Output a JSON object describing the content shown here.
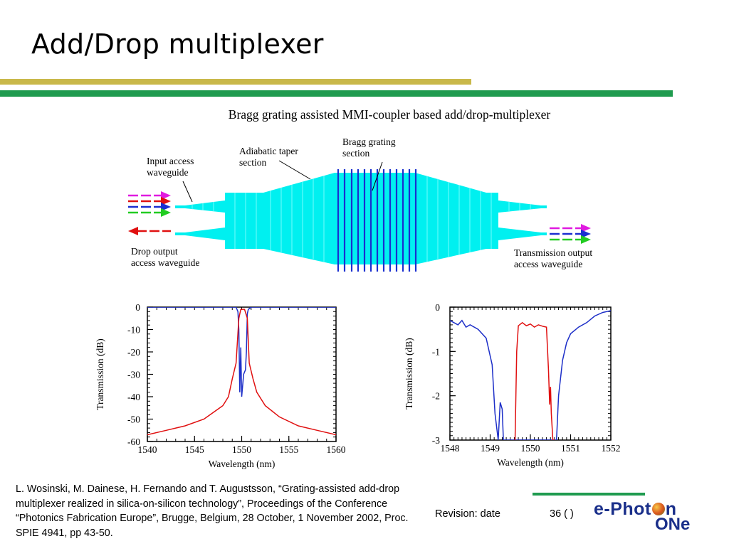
{
  "slide": {
    "title": "Add/Drop multiplexer",
    "diagram_title": "Bragg grating assisted MMI-coupler based add/drop-multiplexer",
    "labels": {
      "input_l1": "Input access",
      "input_l2": "waveguide",
      "taper_l1": "Adiabatic taper",
      "taper_l2": "section",
      "bragg_l1": "Bragg grating",
      "bragg_l2": "section",
      "drop_l1": "Drop output",
      "drop_l2": "access waveguide",
      "trans_l1": "Transmission output",
      "trans_l2": "access waveguide"
    },
    "citation": "L. Wosinski, M. Dainese, H. Fernando and T. Augustsson, “Grating-assisted add-drop multiplexer realized in silica-on-silicon technology”, Proceedings of the Conference “Photonics Fabrication Europe”, Brugge, Belgium, 28 October, 1 November 2002, Proc. SPIE 4941, pp 43-50.",
    "revision": "Revision: date",
    "page": "36 (   )",
    "logo_top": "e-Phot",
    "logo_top_end": "n",
    "logo_bottom": "ONe"
  },
  "colors": {
    "waveguide": "#00f0f0",
    "grating": "#1a2fd0",
    "series_blue": "#1d2fc8",
    "series_red": "#e01010",
    "green_bar": "#1f9b4f",
    "gold_bar": "#c9b84a",
    "logo_blue": "#1a2f8a"
  },
  "chart_data": [
    {
      "type": "line",
      "xlabel": "Wavelength (nm)",
      "ylabel": "Transmission (dB)",
      "xlim": [
        1540,
        1560
      ],
      "ylim": [
        -60,
        0
      ],
      "xticks": [
        1540,
        1545,
        1550,
        1555,
        1560
      ],
      "yticks": [
        0,
        -10,
        -20,
        -30,
        -40,
        -50,
        -60
      ],
      "series": [
        {
          "color": "blue",
          "x": [
            1540,
            1549.4,
            1549.6,
            1549.7,
            1549.8,
            1549.9,
            1550.0,
            1550.2,
            1550.4,
            1550.5,
            1550.6,
            1550.7,
            1551.0,
            1560
          ],
          "y": [
            0,
            0,
            -2,
            -10,
            -38,
            -18,
            -40,
            -30,
            -28,
            -20,
            -3,
            -1,
            0,
            0
          ]
        },
        {
          "color": "red",
          "x": [
            1540,
            1542,
            1544,
            1546,
            1547,
            1548,
            1548.6,
            1549.0,
            1549.4,
            1549.7,
            1549.9,
            1550.3,
            1550.6,
            1550.8,
            1551.2,
            1551.6,
            1552.5,
            1554,
            1556,
            1558,
            1560
          ],
          "y": [
            -57,
            -55,
            -53,
            -50,
            -47,
            -44,
            -40,
            -32,
            -25,
            -5,
            -1,
            -1,
            -5,
            -25,
            -32,
            -38,
            -44,
            -49,
            -53,
            -55,
            -57
          ]
        }
      ]
    },
    {
      "type": "line",
      "xlabel": "Wavelength (nm)",
      "ylabel": "Transmission (dB)",
      "xlim": [
        1548,
        1552
      ],
      "ylim": [
        -3,
        0
      ],
      "xticks": [
        1548,
        1549,
        1550,
        1551,
        1552
      ],
      "yticks": [
        0,
        -1,
        -2,
        -3
      ],
      "series": [
        {
          "color": "blue",
          "x": [
            1548,
            1548.1,
            1548.2,
            1548.3,
            1548.4,
            1548.5,
            1548.7,
            1548.9,
            1549.05,
            1549.12,
            1549.2,
            1549.25,
            1549.3,
            1549.33,
            1549.38,
            1550.65,
            1550.7,
            1550.8,
            1550.9,
            1551.0,
            1551.2,
            1551.4,
            1551.6,
            1551.8,
            1552
          ],
          "y": [
            -0.3,
            -0.35,
            -0.4,
            -0.3,
            -0.45,
            -0.4,
            -0.5,
            -0.7,
            -1.3,
            -2.4,
            -3.0,
            -2.15,
            -2.3,
            -3.0,
            -3.0,
            -3.0,
            -2.0,
            -1.2,
            -0.8,
            -0.6,
            -0.45,
            -0.35,
            -0.2,
            -0.12,
            -0.08
          ]
        },
        {
          "color": "red",
          "x": [
            1549.62,
            1549.66,
            1549.7,
            1549.8,
            1549.9,
            1550.0,
            1550.1,
            1550.2,
            1550.3,
            1550.4,
            1550.45,
            1550.48,
            1550.5,
            1550.52,
            1550.56,
            1550.6
          ],
          "y": [
            -3.0,
            -1.0,
            -0.42,
            -0.35,
            -0.42,
            -0.38,
            -0.45,
            -0.4,
            -0.43,
            -0.45,
            -1.4,
            -2.2,
            -1.8,
            -2.4,
            -3.0,
            -3.0
          ]
        }
      ]
    }
  ]
}
